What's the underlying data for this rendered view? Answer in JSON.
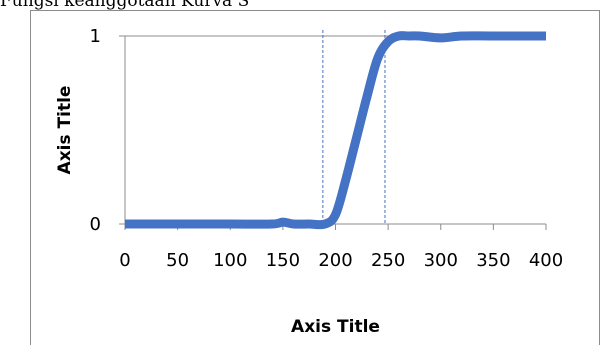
{
  "header": {
    "text": "Fungsi keanggotaan Kurva S"
  },
  "chart_data": {
    "type": "line",
    "title": "",
    "xlabel": "Axis Title",
    "ylabel": "Axis Title",
    "xlim": [
      0,
      400
    ],
    "ylim": [
      0,
      1
    ],
    "x_ticks": [
      0,
      50,
      100,
      150,
      200,
      250,
      300,
      350,
      400
    ],
    "y_ticks": [
      0,
      1
    ],
    "grid": "horizontal",
    "legend": "none",
    "series": [
      {
        "color": "#4472c4",
        "x": [
          0,
          50,
          100,
          140,
          150,
          160,
          175,
          190,
          200,
          210,
          220,
          230,
          240,
          250,
          260,
          270,
          280,
          300,
          320,
          350,
          400
        ],
        "y": [
          0,
          0,
          0,
          0,
          0.01,
          0,
          0,
          0,
          0.05,
          0.24,
          0.46,
          0.68,
          0.88,
          0.97,
          1,
          1,
          1,
          0.99,
          1,
          1,
          1
        ]
      }
    ],
    "reference_lines": [
      {
        "axis": "x",
        "value": 188,
        "style": "dashed",
        "color": "#4472c4"
      },
      {
        "axis": "x",
        "value": 247,
        "style": "dashed",
        "color": "#4472c4"
      }
    ]
  }
}
